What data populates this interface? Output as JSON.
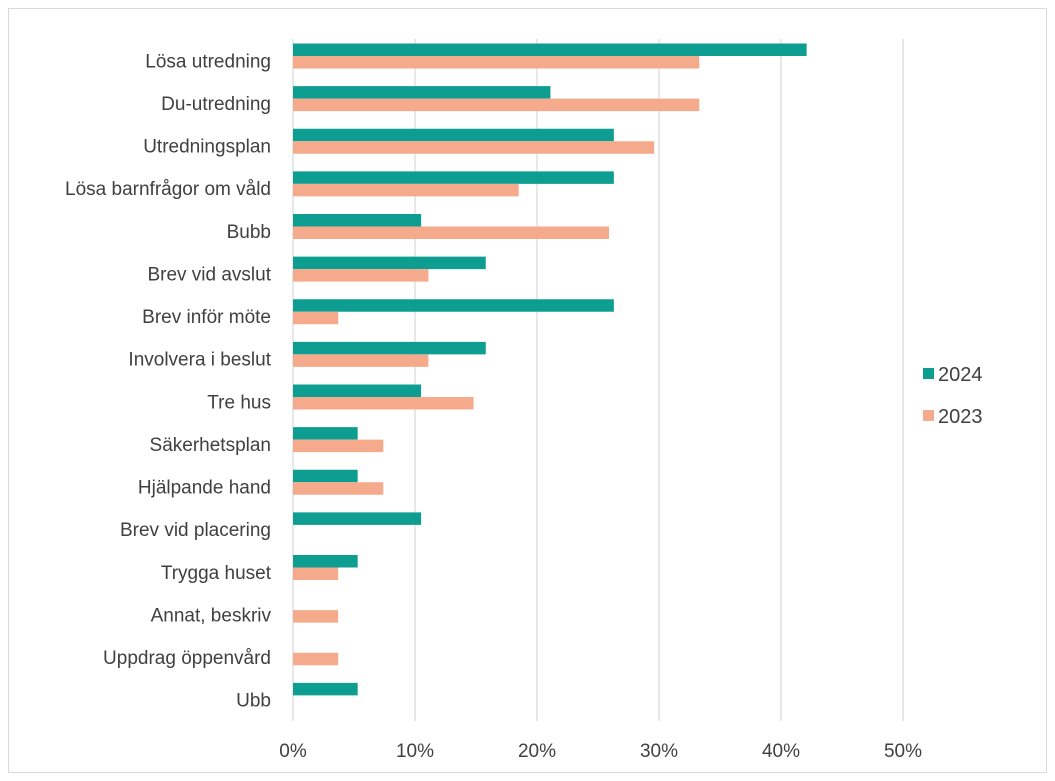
{
  "chart_data": {
    "type": "bar",
    "orientation": "horizontal",
    "categories": [
      "Lösa utredning ",
      "Du-utredning",
      "Utredningsplan",
      "Lösa barnfrågor om våld",
      "Bubb",
      "Brev vid avslut",
      "Brev inför möte",
      "Involvera i beslut",
      "Tre hus",
      "Säkerhetsplan",
      "Hjälpande hand",
      "Brev vid placering",
      "Trygga huset",
      "Annat, beskriv",
      "Uppdrag öppenvård",
      "Ubb"
    ],
    "series": [
      {
        "name": "2024",
        "color": "#0e9e91",
        "values": [
          42.1,
          21.1,
          26.3,
          26.3,
          10.5,
          15.8,
          26.3,
          15.8,
          10.5,
          5.3,
          5.3,
          10.5,
          5.3,
          0,
          0,
          5.3
        ]
      },
      {
        "name": "2023",
        "color": "#f5aa8c",
        "values": [
          33.3,
          33.3,
          29.6,
          18.5,
          25.9,
          11.1,
          3.7,
          11.1,
          14.8,
          7.4,
          7.4,
          0,
          3.7,
          3.7,
          3.7,
          0
        ]
      }
    ],
    "xlim": [
      0,
      50
    ],
    "x_ticks": [
      "0%",
      "10%",
      "20%",
      "30%",
      "40%",
      "50%"
    ],
    "grid": true,
    "legend_position": "right",
    "gridline_color": "#d9d9d9"
  }
}
